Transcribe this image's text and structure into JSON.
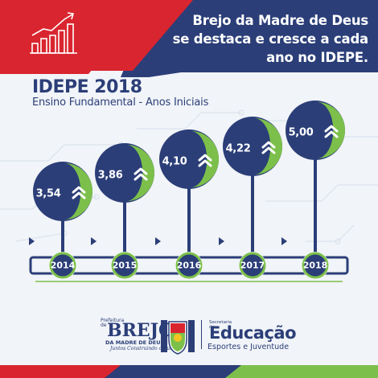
{
  "header": {
    "lines": [
      "Brejo da Madre de Deus",
      "se destaca e cresce a cada",
      "ano no IDEPE."
    ]
  },
  "title": "IDEPE 2018",
  "subtitle": "Ensino Fundamental - Anos Iniciais",
  "milestones": [
    {
      "year": "2014",
      "value": "3,54",
      "score": 3.54
    },
    {
      "year": "2015",
      "value": "3,86",
      "score": 3.86
    },
    {
      "year": "2016",
      "value": "4,10",
      "score": 4.1
    },
    {
      "year": "2017",
      "value": "4,22",
      "score": 4.22
    },
    {
      "year": "2018",
      "value": "5,00",
      "score": 5.0
    }
  ],
  "logos": {
    "brejo": {
      "prefix": "Prefeitura de",
      "name": "BREJO",
      "sub": "DA MADRE DE DEUS",
      "slogan": "Juntos Construindo o Futuro"
    },
    "secretaria": {
      "prefix": "Secretaria de",
      "name": "Educação",
      "sub": "Esportes e Juventude"
    }
  },
  "colors": {
    "navy": "#2b3e78",
    "green": "#7cc04b",
    "red": "#d9252f",
    "background": "#f1f4f8"
  },
  "icons": [
    "growth-chart-icon",
    "up-chevron-icon",
    "play-arrow-icon",
    "city-crest-icon"
  ]
}
